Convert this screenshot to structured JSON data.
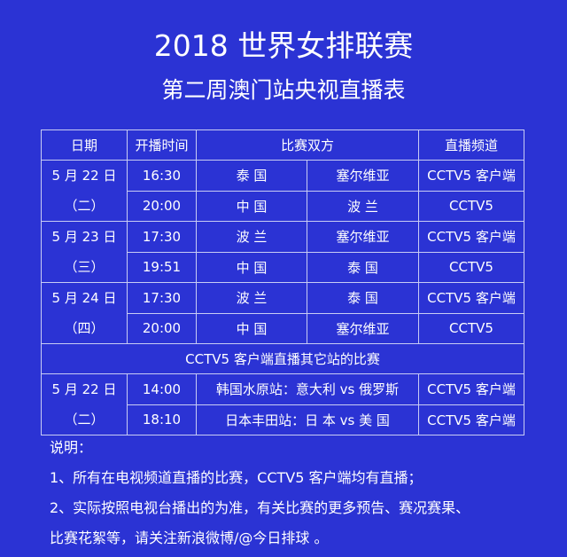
{
  "title": "2018 世界女排联赛",
  "subtitle": "第二周澳门站央视直播表",
  "table": {
    "headers": {
      "date": "日期",
      "time": "开播时间",
      "teams": "比赛双方",
      "channel": "直播频道"
    },
    "days": [
      {
        "date": "5 月 22 日",
        "weekday": "（二）",
        "matches": [
          {
            "time": "16:30",
            "team1": "泰 国",
            "team2": "塞尔维亚",
            "channel": "CCTV5 客户端"
          },
          {
            "time": "20:00",
            "team1": "中 国",
            "team2": "波 兰",
            "channel": "CCTV5"
          }
        ]
      },
      {
        "date": "5 月 23 日",
        "weekday": "（三）",
        "matches": [
          {
            "time": "17:30",
            "team1": "波 兰",
            "team2": "塞尔维亚",
            "channel": "CCTV5 客户端"
          },
          {
            "time": "19:51",
            "team1": "中 国",
            "team2": "泰 国",
            "channel": "CCTV5"
          }
        ]
      },
      {
        "date": "5 月 24 日",
        "weekday": "（四）",
        "matches": [
          {
            "time": "17:30",
            "team1": "波 兰",
            "team2": "泰 国",
            "channel": "CCTV5 客户端"
          },
          {
            "time": "20:00",
            "team1": "中 国",
            "team2": "塞尔维亚",
            "channel": "CCTV5"
          }
        ]
      }
    ],
    "other_section": "CCTV5 客户端直播其它站的比赛",
    "other": {
      "date": "5 月 22 日",
      "weekday": "（二）",
      "matches": [
        {
          "time": "14:00",
          "match": "韩国水原站：意大利 vs 俄罗斯",
          "channel": "CCTV5 客户端"
        },
        {
          "time": "18:10",
          "match": "日本丰田站：日 本 vs 美 国",
          "channel": "CCTV5 客户端"
        }
      ]
    }
  },
  "notes": {
    "heading": "说明：",
    "lines": [
      "1、所有在电视频道直播的比赛，CCTV5 客户端均有直播；",
      "2、实际按照电视台播出的为准，有关比赛的更多预告、赛况赛果、",
      "比赛花絮等，请关注新浪微博/@今日排球 。"
    ]
  },
  "colors": {
    "background": "#2b33d4",
    "text": "#ffffff",
    "border": "#c8ccf4"
  }
}
